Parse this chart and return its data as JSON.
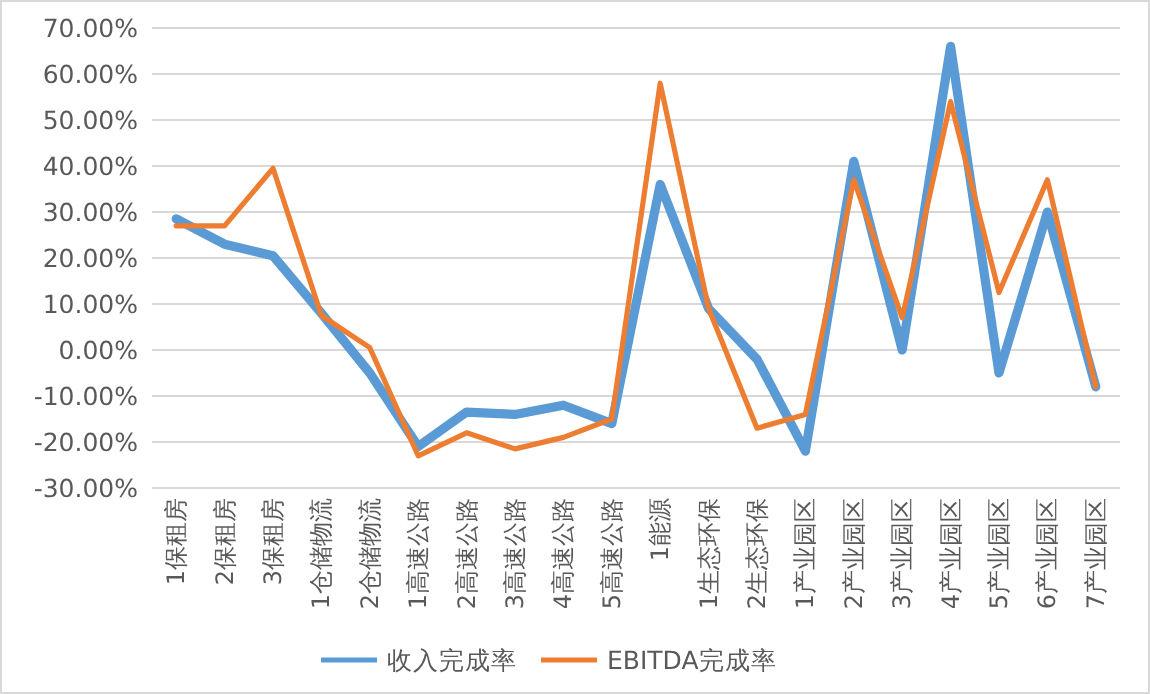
{
  "chart_data": {
    "type": "line",
    "categories": [
      "1保租房",
      "2保租房",
      "3保租房",
      "1仓储物流",
      "2仓储物流",
      "1高速公路",
      "2高速公路",
      "3高速公路",
      "4高速公路",
      "5高速公路",
      "1能源",
      "1生态环保",
      "2生态环保",
      "1产业园区",
      "2产业园区",
      "3产业园区",
      "4产业园区",
      "5产业园区",
      "6产业园区",
      "7产业园区"
    ],
    "series": [
      {
        "name": "收入完成率",
        "color": "#5b9bd5",
        "values": [
          28.5,
          23,
          20.5,
          8,
          -5,
          -21,
          -13.5,
          -14,
          -12,
          -16,
          36,
          9,
          -2,
          -22,
          41,
          0,
          66,
          -5,
          30,
          -8
        ]
      },
      {
        "name": "EBITDA完成率",
        "color": "#ed7d31",
        "values": [
          27,
          27,
          39.5,
          7.5,
          0.5,
          -23,
          -18,
          -21.5,
          -19,
          -15,
          58,
          9,
          -17,
          -14,
          37,
          7,
          54,
          12.5,
          37,
          -8
        ]
      }
    ],
    "ylim": [
      -30,
      70
    ],
    "yticks": [
      {
        "value": -30,
        "label": "-30.00%"
      },
      {
        "value": -20,
        "label": "-20.00%"
      },
      {
        "value": -10,
        "label": "-10.00%"
      },
      {
        "value": 0,
        "label": "0.00%"
      },
      {
        "value": 10,
        "label": "10.00%"
      },
      {
        "value": 20,
        "label": "20.00%"
      },
      {
        "value": 30,
        "label": "30.00%"
      },
      {
        "value": 40,
        "label": "40.00%"
      },
      {
        "value": 50,
        "label": "50.00%"
      },
      {
        "value": 60,
        "label": "60.00%"
      },
      {
        "value": 70,
        "label": "70.00%"
      }
    ],
    "grid": "y",
    "legend": "bottom",
    "marker": "none",
    "line_style": "solid"
  }
}
